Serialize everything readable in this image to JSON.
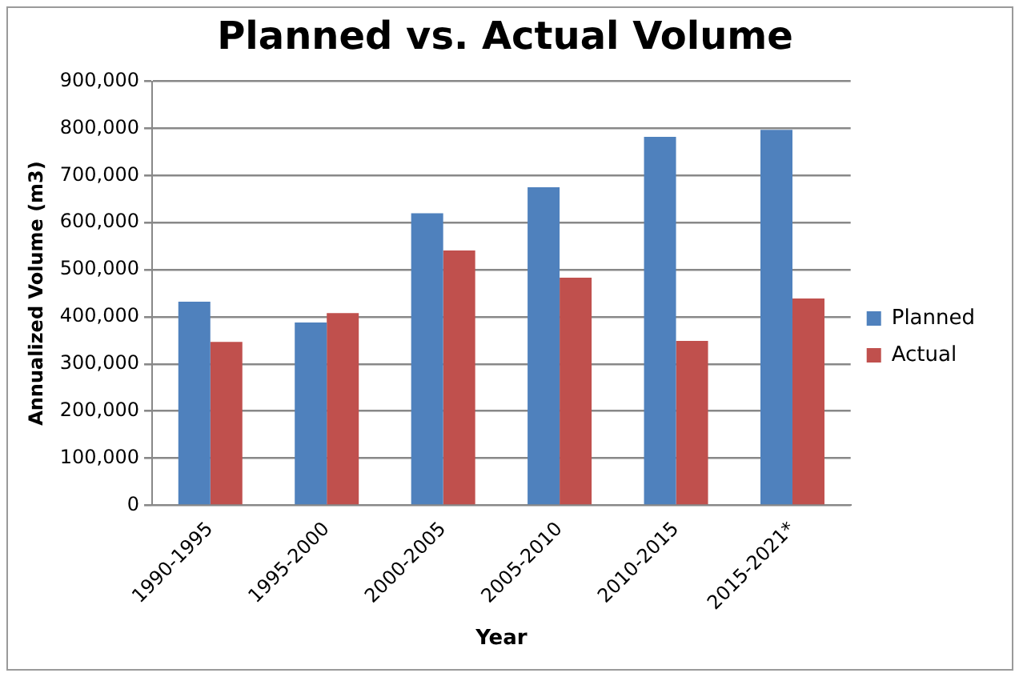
{
  "chart_data": {
    "type": "bar",
    "title": "Planned vs. Actual Volume",
    "xlabel": "Year",
    "ylabel": "Annualized Volume (m3)",
    "categories": [
      "1990-1995",
      "1995-2000",
      "2000-2005",
      "2005-2010",
      "2010-2015",
      "2015-2021*"
    ],
    "series": [
      {
        "name": "Planned",
        "color": "#4f81bd",
        "values": [
          432000,
          388000,
          620000,
          675000,
          782000,
          797000
        ]
      },
      {
        "name": "Actual",
        "color": "#c0504d",
        "values": [
          347000,
          408000,
          541000,
          483000,
          349000,
          439000
        ]
      }
    ],
    "ylim": [
      0,
      900000
    ],
    "yticks": [
      0,
      {
        "value": 100000,
        "label": "100,000"
      },
      {
        "value": 200000,
        "label": "200,000"
      },
      {
        "value": 300000,
        "label": "300,000"
      },
      {
        "value": 400000,
        "label": "400,000"
      },
      {
        "value": 500000,
        "label": "500,000"
      },
      {
        "value": 600000,
        "label": "600,000"
      },
      {
        "value": 700000,
        "label": "700,000"
      },
      {
        "value": 800000,
        "label": "800,000"
      },
      {
        "value": 900000,
        "label": "900,000"
      }
    ],
    "grid": "y",
    "legend": "right"
  }
}
